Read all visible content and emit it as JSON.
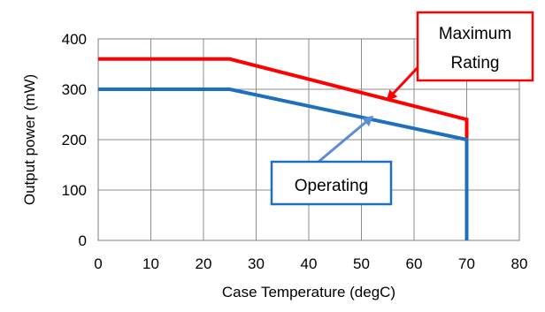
{
  "chart_data": {
    "type": "line",
    "title": "",
    "xlabel": "Case Temperature (degC)",
    "ylabel": "Output power (mW)",
    "xlim": [
      0,
      80
    ],
    "ylim": [
      0,
      400
    ],
    "x_ticks": [
      0,
      10,
      20,
      30,
      40,
      50,
      60,
      70,
      80
    ],
    "y_ticks": [
      0,
      100,
      200,
      300,
      400
    ],
    "x_tick_labels": [
      "0",
      "10",
      "20",
      "30",
      "40",
      "50",
      "60",
      "70",
      "80"
    ],
    "y_tick_labels": [
      "0",
      "100",
      "200",
      "300",
      "400"
    ],
    "grid": true,
    "series": [
      {
        "key": "maximum",
        "color": "#ff0000",
        "x": [
          0,
          25,
          70,
          70
        ],
        "y": [
          360,
          360,
          240,
          200
        ]
      },
      {
        "key": "operating",
        "color": "#1f6fbf",
        "x": [
          0,
          25,
          70,
          70
        ],
        "y": [
          300,
          300,
          200,
          0
        ]
      }
    ],
    "annotations": [
      {
        "key": "maximum",
        "text": "Maximum Rating",
        "lines": [
          "Maximum",
          "Rating"
        ],
        "border_color": "#ff0000",
        "arrow_color": "#ff0000",
        "target": [
          55,
          280
        ]
      },
      {
        "key": "operating",
        "text": "Operating",
        "lines": [
          "Operating"
        ],
        "border_color": "#1f6fbf",
        "arrow_color": "#5b8ed6",
        "target": [
          52,
          245
        ]
      }
    ]
  }
}
